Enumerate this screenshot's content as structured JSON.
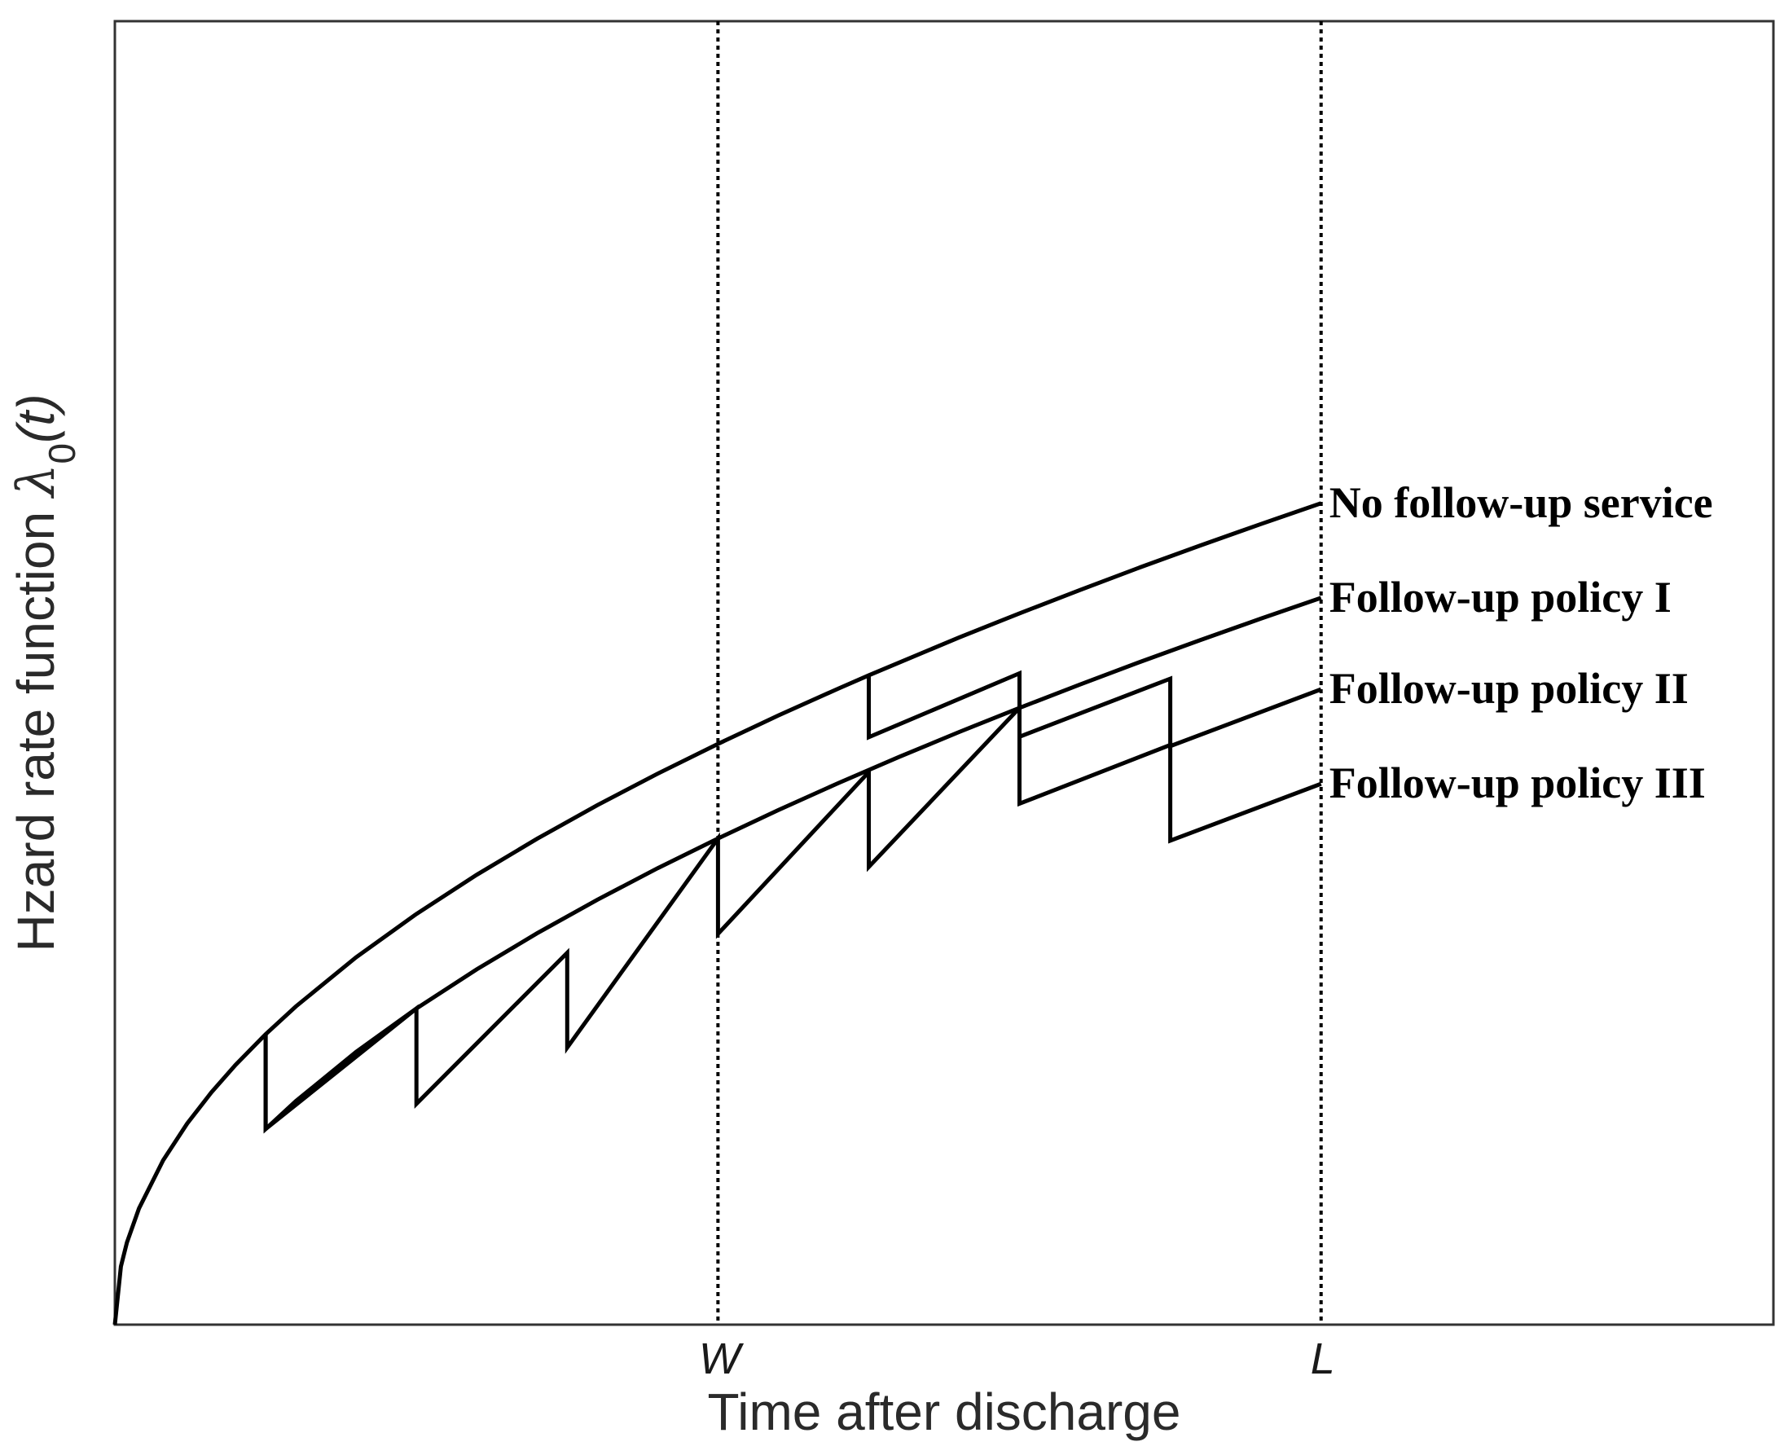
{
  "chart_data": {
    "type": "line",
    "xlabel": "Time after discharge",
    "ylabel": "Hzard rate function",
    "ylabel_symbol": "λ",
    "ylabel_subscript": "0",
    "ylabel_argument": "(t)",
    "xlim": [
      0,
      1.375
    ],
    "ylim": [
      0,
      1.587
    ],
    "grid": false,
    "frame": true,
    "vlines": [
      {
        "label": "W",
        "x": 0.5
      },
      {
        "label": "L",
        "x": 1.0
      }
    ],
    "series": [
      {
        "name": "No follow-up service",
        "points": [
          [
            0,
            0
          ],
          [
            0.005,
            0.0707
          ],
          [
            0.01,
            0.1
          ],
          [
            0.02,
            0.1414
          ],
          [
            0.04,
            0.2
          ],
          [
            0.06,
            0.2449
          ],
          [
            0.08,
            0.2828
          ],
          [
            0.1,
            0.3162
          ],
          [
            0.125,
            0.3536
          ],
          [
            0.15,
            0.3873
          ],
          [
            0.2,
            0.4472
          ],
          [
            0.25,
            0.5
          ],
          [
            0.3,
            0.5477
          ],
          [
            0.35,
            0.5916
          ],
          [
            0.4,
            0.6325
          ],
          [
            0.45,
            0.6708
          ],
          [
            0.5,
            0.7071
          ],
          [
            0.55,
            0.7416
          ],
          [
            0.6,
            0.7746
          ],
          [
            0.625,
            0.7906
          ],
          [
            0.7,
            0.8367
          ],
          [
            0.75,
            0.866
          ],
          [
            0.8,
            0.8944
          ],
          [
            0.85,
            0.922
          ],
          [
            0.9,
            0.9487
          ],
          [
            0.95,
            0.9747
          ],
          [
            1.0,
            1.0
          ]
        ]
      },
      {
        "name": "Follow-up policy II",
        "points": [
          [
            0.625,
            0.7906
          ],
          [
            0.625,
            0.7152
          ],
          [
            0.75,
            0.793
          ],
          [
            0.75,
            0.7158
          ],
          [
            0.875,
            0.7865
          ],
          [
            0.875,
            0.7043
          ],
          [
            1.0,
            0.7736
          ]
        ]
      },
      {
        "name": "Follow-up policy I",
        "points": [
          [
            0.125,
            0.3536
          ],
          [
            0.125,
            0.2382
          ],
          [
            0.15,
            0.2721
          ],
          [
            0.2,
            0.3321
          ],
          [
            0.25,
            0.3849
          ],
          [
            0.3,
            0.4326
          ],
          [
            0.35,
            0.4765
          ],
          [
            0.4,
            0.5174
          ],
          [
            0.45,
            0.5557
          ],
          [
            0.5,
            0.592
          ],
          [
            0.55,
            0.6265
          ],
          [
            0.6,
            0.6595
          ],
          [
            0.65,
            0.6911
          ],
          [
            0.7,
            0.7216
          ],
          [
            0.75,
            0.7509
          ],
          [
            0.8,
            0.7793
          ],
          [
            0.85,
            0.8069
          ],
          [
            0.9,
            0.8336
          ],
          [
            0.95,
            0.8596
          ],
          [
            1.0,
            0.8849
          ]
        ]
      },
      {
        "name": "Follow-up policy III",
        "points": [
          [
            0.125,
            0.3536
          ],
          [
            0.125,
            0.2382
          ],
          [
            0.25,
            0.3849
          ],
          [
            0.25,
            0.2689
          ],
          [
            0.375,
            0.4528
          ],
          [
            0.375,
            0.3373
          ],
          [
            0.5,
            0.592
          ],
          [
            0.5,
            0.4758
          ],
          [
            0.625,
            0.6728
          ],
          [
            0.625,
            0.5573
          ],
          [
            0.75,
            0.7509
          ],
          [
            0.75,
            0.6343
          ],
          [
            0.875,
            0.7058
          ],
          [
            0.875,
            0.5893
          ],
          [
            1.0,
            0.6585
          ]
        ]
      }
    ]
  }
}
